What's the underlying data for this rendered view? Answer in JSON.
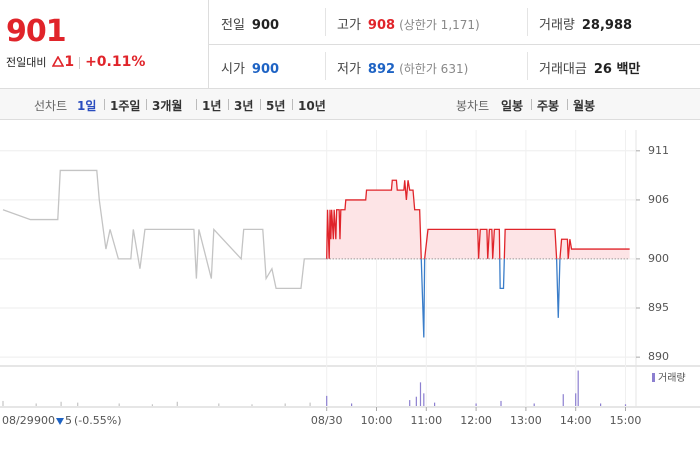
{
  "header": {
    "price": "901",
    "change_label": "전일대비",
    "change": "1",
    "change_pct": "+0.11%"
  },
  "info": [
    [
      {
        "label": "전일",
        "value": "900"
      },
      {
        "label": "고가",
        "value": "908",
        "note": "(상한가 1,171)"
      },
      {
        "label": "거래량",
        "value": "28,988"
      }
    ],
    [
      {
        "label": "시가",
        "value": "900"
      },
      {
        "label": "저가",
        "value": "892",
        "note": "(하한가 631)"
      },
      {
        "label": "거래대금",
        "value": "26 백만"
      }
    ]
  ],
  "tabs": {
    "line_label": "선차트",
    "line": [
      "1일",
      "1주일",
      "3개월",
      "1년",
      "3년",
      "5년",
      "10년"
    ],
    "candle_label": "봉차트",
    "candle": [
      "일봉",
      "주봉",
      "월봉"
    ]
  },
  "footer": {
    "date": "08/29",
    "close": "900",
    "change": "5",
    "pct": "(-0.55%)"
  },
  "chart_data": {
    "type": "line",
    "ylim": [
      889.2,
      912.1
    ],
    "yticks": [
      911,
      906,
      900,
      895,
      890
    ],
    "xticks": [
      {
        "value": "08/30 09:00",
        "label": "08/30"
      },
      {
        "value": "08/30 10:00",
        "label": "10:00"
      },
      {
        "value": "08/30 11:00",
        "label": "11:00"
      },
      {
        "value": "08/30 12:00",
        "label": "12:00"
      },
      {
        "value": "08/30 13:00",
        "label": "13:00"
      },
      {
        "value": "08/30 14:00",
        "label": "14:00"
      },
      {
        "value": "08/30 15:00",
        "label": "15:00"
      }
    ],
    "grid": true,
    "baseline": 900,
    "series": [
      {
        "color": "#c4c4c4",
        "x": [
          "08/29 09:00",
          "08/29 09:33",
          "08/29 10:06",
          "08/29 10:09",
          "08/29 10:53",
          "08/29 10:56",
          "08/29 11:04",
          "08/29 11:09",
          "08/29 11:19",
          "08/29 11:34",
          "08/29 11:37",
          "08/29 11:45",
          "08/29 11:51",
          "08/29 12:50",
          "08/29 12:53",
          "08/29 12:56",
          "08/29 13:11",
          "08/29 13:14",
          "08/29 13:47",
          "08/29 13:50",
          "08/29 14:13",
          "08/29 14:17",
          "08/29 14:24",
          "08/29 14:29",
          "08/29 14:59",
          "08/29 15:03",
          "08/29 15:30"
        ],
        "values": [
          905,
          904,
          904,
          909,
          909,
          906,
          901,
          903,
          900,
          900,
          903,
          899,
          903,
          903,
          898,
          903,
          898,
          903,
          900,
          903,
          903,
          898,
          899,
          897,
          897,
          900,
          900
        ]
      },
      {
        "color": "#e0242a",
        "down_color": "#3a7dc9",
        "fill": "#fde4e6",
        "x": [
          "08/30 09:00",
          "08/30 09:01",
          "08/30 09:03",
          "08/30 09:04",
          "08/30 09:05",
          "08/30 09:06",
          "08/30 09:08",
          "08/30 09:09",
          "08/30 09:11",
          "08/30 09:12",
          "08/30 09:15",
          "08/30 09:16",
          "08/30 09:17",
          "08/30 09:22",
          "08/30 09:23",
          "08/30 09:47",
          "08/30 09:48",
          "08/30 10:18",
          "08/30 10:19",
          "08/30 10:24",
          "08/30 10:25",
          "08/30 10:33",
          "08/30 10:34",
          "08/30 10:36",
          "08/30 10:38",
          "08/30 10:40",
          "08/30 10:44",
          "08/30 10:46",
          "08/30 10:52",
          "08/30 10:57",
          "08/30 10:58",
          "08/30 11:02",
          "08/30 12:02",
          "08/30 12:03",
          "08/30 12:05",
          "08/30 12:13",
          "08/30 12:14",
          "08/30 12:16",
          "08/30 12:19",
          "08/30 12:20",
          "08/30 12:22",
          "08/30 12:28",
          "08/30 12:29",
          "08/30 12:33",
          "08/30 12:35",
          "08/30 13:35",
          "08/30 13:37",
          "08/30 13:39",
          "08/30 13:41",
          "08/30 13:43",
          "08/30 13:50",
          "08/30 13:51",
          "08/30 13:53",
          "08/30 13:55",
          "08/30 15:05"
        ],
        "values": [
          900,
          905,
          900,
          905,
          902,
          905,
          902,
          905,
          902,
          905,
          905,
          902,
          905,
          905,
          906,
          906,
          907,
          907,
          908,
          908,
          907,
          907,
          908,
          906,
          908,
          907,
          907,
          905,
          905,
          892,
          900,
          903,
          903,
          900,
          903,
          903,
          900,
          903,
          903,
          900,
          903,
          903,
          897,
          897,
          903,
          903,
          900,
          894,
          900,
          902,
          902,
          900,
          902,
          901,
          901
        ]
      }
    ],
    "volume": {
      "name": "거래량",
      "color": "#8c7fd0",
      "prev_color": "#c4c4c4",
      "ylim": [
        0,
        4500
      ],
      "x": [
        "08/29 09:00",
        "08/29 09:40",
        "08/29 10:10",
        "08/29 10:30",
        "08/29 11:20",
        "08/29 12:00",
        "08/29 12:30",
        "08/29 13:20",
        "08/29 14:00",
        "08/29 14:40",
        "08/29 15:10",
        "08/30 09:00",
        "08/30 09:30",
        "08/30 10:40",
        "08/30 10:48",
        "08/30 10:53",
        "08/30 10:57",
        "08/30 11:10",
        "08/30 12:00",
        "08/30 12:30",
        "08/30 13:10",
        "08/30 13:45",
        "08/30 14:00",
        "08/30 14:03",
        "08/30 14:30",
        "08/30 15:00"
      ],
      "values": [
        600,
        300,
        500,
        400,
        300,
        200,
        500,
        300,
        200,
        300,
        400,
        1200,
        300,
        700,
        1100,
        2800,
        1500,
        400,
        300,
        600,
        300,
        1400,
        1500,
        4200,
        300,
        200
      ]
    }
  }
}
